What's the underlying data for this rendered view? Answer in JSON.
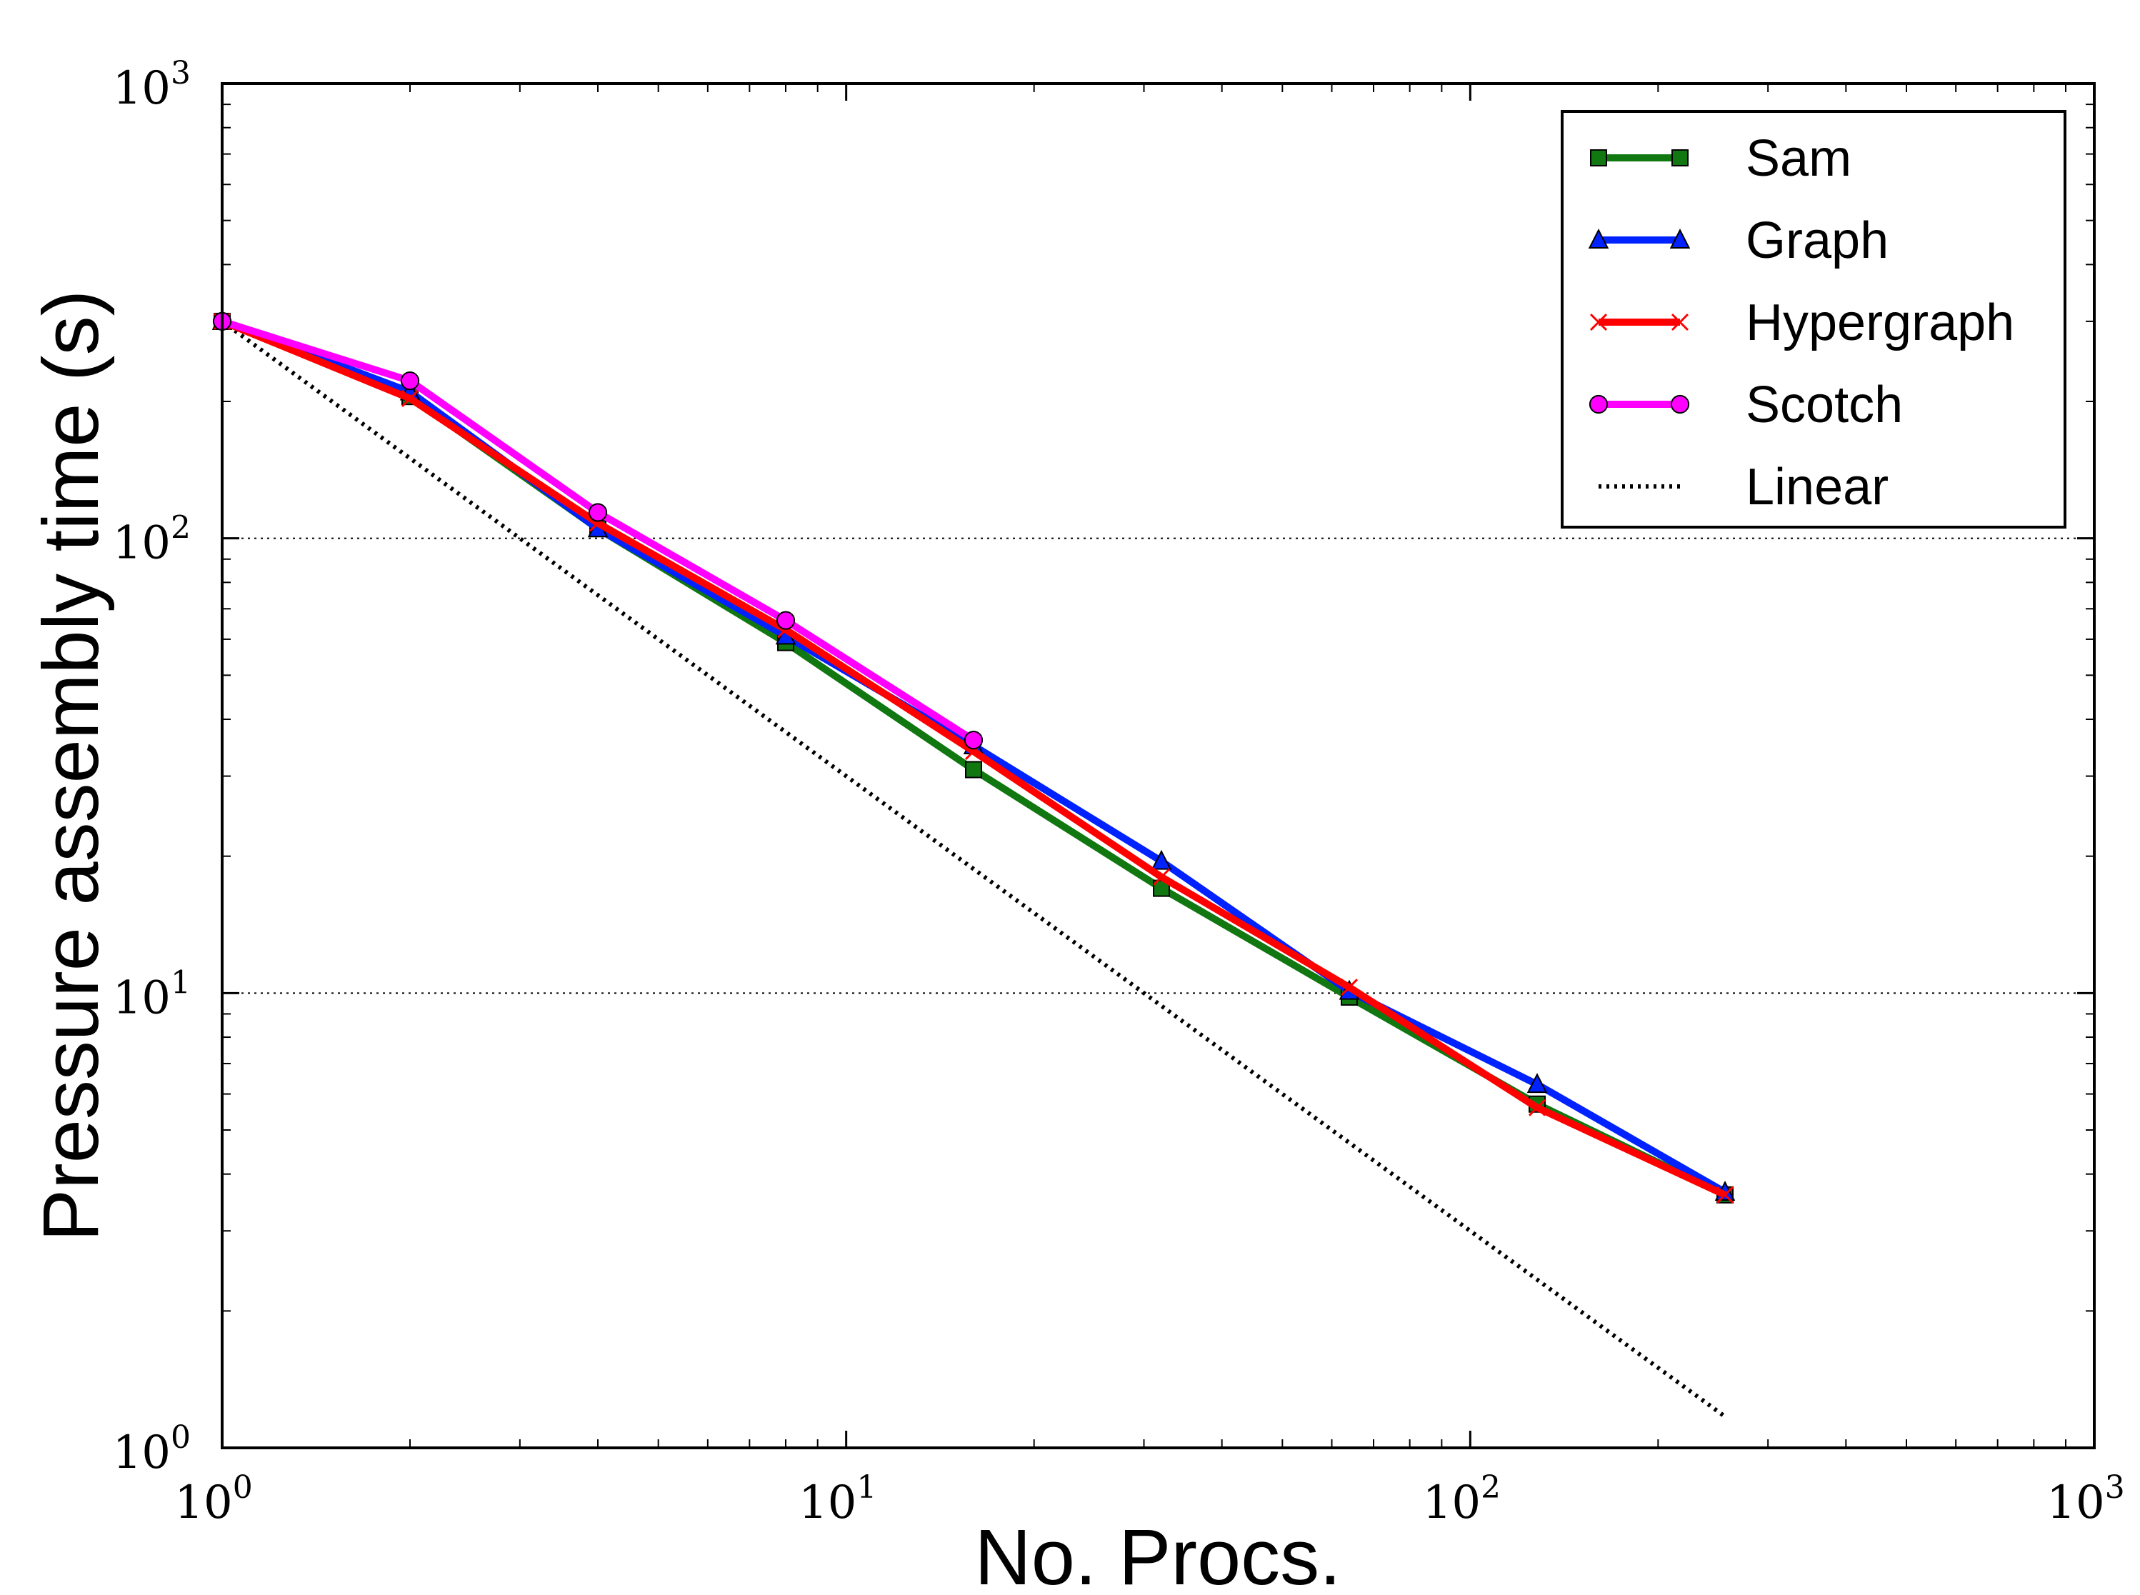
{
  "chart_data": {
    "type": "line",
    "xscale": "log",
    "yscale": "log",
    "xlim": [
      1,
      1000
    ],
    "ylim": [
      1,
      1000
    ],
    "xlabel": "No. Procs.",
    "ylabel": "Pressure assembly time (s)",
    "xticks": [
      {
        "base": "10",
        "exp": "0",
        "value": 1
      },
      {
        "base": "10",
        "exp": "1",
        "value": 10
      },
      {
        "base": "10",
        "exp": "2",
        "value": 100
      },
      {
        "base": "10",
        "exp": "3",
        "value": 1000
      }
    ],
    "yticks": [
      {
        "base": "10",
        "exp": "0",
        "value": 1
      },
      {
        "base": "10",
        "exp": "1",
        "value": 10
      },
      {
        "base": "10",
        "exp": "2",
        "value": 100
      },
      {
        "base": "10",
        "exp": "3",
        "value": 1000
      }
    ],
    "grid": "y-major dotted",
    "legend_position": "top-right",
    "x": [
      1,
      2,
      4,
      8,
      16,
      32,
      64,
      128,
      256
    ],
    "series": [
      {
        "name": "Sam",
        "color": "#117711",
        "marker": "square",
        "linestyle": "solid",
        "values": [
          300,
          205,
          105,
          59,
          31,
          17,
          9.8,
          5.7,
          3.6
        ]
      },
      {
        "name": "Graph",
        "color": "#0022ff",
        "marker": "triangle",
        "linestyle": "solid",
        "values": [
          300,
          210,
          105,
          61,
          35,
          19.5,
          10.1,
          6.3,
          3.65
        ]
      },
      {
        "name": "Hypergraph",
        "color": "#ff0000",
        "marker": "x",
        "linestyle": "solid",
        "values": [
          300,
          203,
          108,
          63,
          34,
          18,
          10.3,
          5.6,
          3.6
        ]
      },
      {
        "name": "Scotch",
        "color": "#ff00ff",
        "marker": "circle",
        "linestyle": "solid",
        "values": [
          300,
          222,
          114,
          66,
          36,
          null,
          null,
          null,
          null
        ]
      },
      {
        "name": "Linear",
        "color": "#000000",
        "marker": "none",
        "linestyle": "dotted",
        "values": [
          300,
          150,
          75,
          37.5,
          18.75,
          9.375,
          4.6875,
          2.34375,
          1.171875
        ]
      }
    ]
  }
}
